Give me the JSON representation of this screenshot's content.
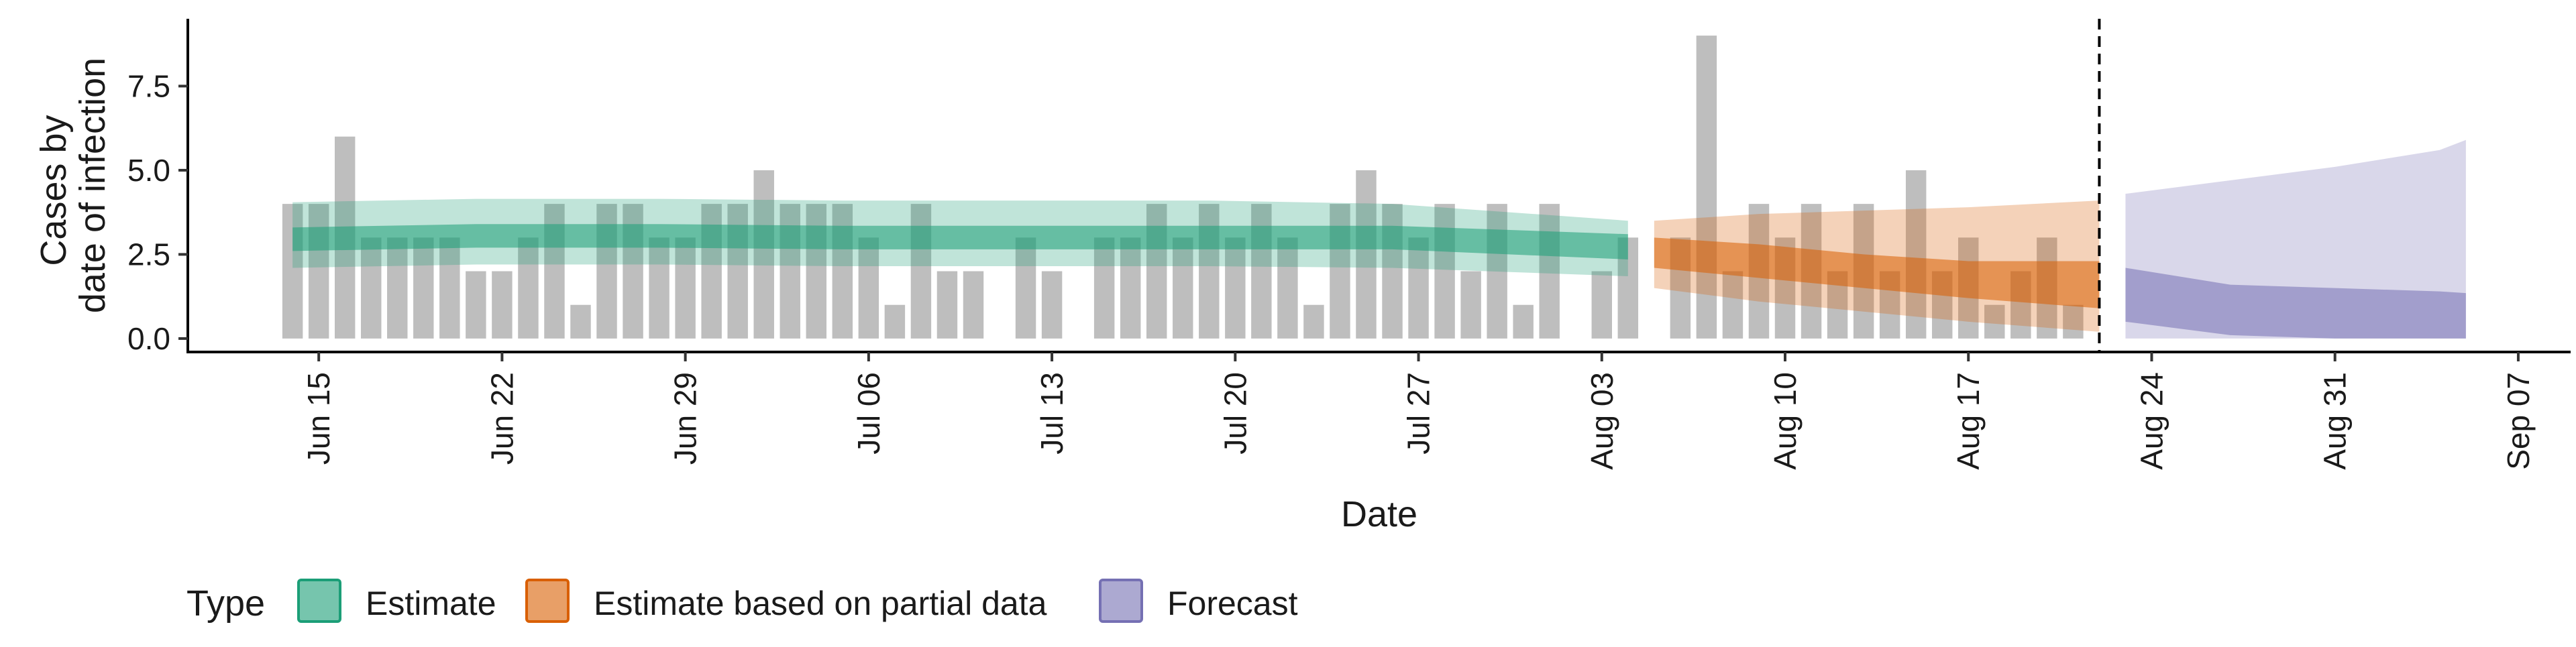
{
  "chart_data": {
    "type": "bar",
    "xlabel": "Date",
    "ylabel_lines": [
      "Cases by",
      "date of infection"
    ],
    "x_range": [
      "2020-06-10",
      "2020-09-09"
    ],
    "ylim": [
      -0.4,
      9.5
    ],
    "y_ticks": [
      0.0,
      2.5,
      5.0,
      7.5
    ],
    "y_tick_labels": [
      "0.0",
      "2.5",
      "5.0",
      "7.5"
    ],
    "x_ticks": [
      "2020-06-15",
      "2020-06-22",
      "2020-06-29",
      "2020-07-06",
      "2020-07-13",
      "2020-07-20",
      "2020-07-27",
      "2020-08-03",
      "2020-08-10",
      "2020-08-17",
      "2020-08-24",
      "2020-08-31",
      "2020-09-07"
    ],
    "x_tick_labels": [
      "Jun 15",
      "Jun 22",
      "Jun 29",
      "Jul 06",
      "Jul 13",
      "Jul 20",
      "Jul 27",
      "Aug 03",
      "Aug 10",
      "Aug 17",
      "Aug 24",
      "Aug 31",
      "Sep 07"
    ],
    "grid": false,
    "forecast_cutoff_date": "2020-08-22",
    "reported_cases": {
      "start_date": "2020-06-14",
      "values": [
        4,
        4,
        6,
        3,
        3,
        3,
        3,
        2,
        2,
        3,
        4,
        1,
        4,
        4,
        3,
        3,
        4,
        4,
        5,
        4,
        4,
        4,
        3,
        1,
        4,
        2,
        2,
        0,
        3,
        2,
        0,
        3,
        3,
        4,
        3,
        4,
        3,
        4,
        3,
        1,
        4,
        5,
        4,
        3,
        4,
        2,
        4,
        1,
        4,
        0,
        2,
        3,
        0,
        3,
        9,
        2,
        4,
        3,
        4,
        2,
        4,
        2,
        5,
        2,
        3,
        1,
        2,
        3,
        1
      ]
    },
    "series": [
      {
        "name": "Estimate",
        "color": "#1b9e77",
        "dates": [
          "2020-06-14",
          "2020-06-21",
          "2020-06-28",
          "2020-07-05",
          "2020-07-12",
          "2020-07-19",
          "2020-07-26",
          "2020-08-04"
        ],
        "median": [
          2.95,
          3.05,
          3.05,
          3.0,
          3.0,
          3.0,
          3.0,
          2.75
        ],
        "inner_low": [
          2.6,
          2.7,
          2.7,
          2.65,
          2.65,
          2.65,
          2.65,
          2.35
        ],
        "inner_high": [
          3.3,
          3.4,
          3.4,
          3.35,
          3.35,
          3.35,
          3.35,
          3.1
        ],
        "outer_low": [
          2.1,
          2.2,
          2.2,
          2.15,
          2.15,
          2.15,
          2.1,
          1.85
        ],
        "outer_high": [
          4.05,
          4.15,
          4.15,
          4.1,
          4.1,
          4.1,
          4.0,
          3.5
        ]
      },
      {
        "name": "Estimate based on partial data",
        "color": "#d95f02",
        "dates": [
          "2020-08-05",
          "2020-08-09",
          "2020-08-13",
          "2020-08-17",
          "2020-08-22"
        ],
        "median": [
          2.55,
          2.35,
          2.05,
          1.85,
          1.7
        ],
        "inner_low": [
          2.1,
          1.8,
          1.5,
          1.2,
          0.9
        ],
        "inner_high": [
          3.0,
          2.8,
          2.5,
          2.3,
          2.3
        ],
        "outer_low": [
          1.5,
          1.1,
          0.8,
          0.5,
          0.2
        ],
        "outer_high": [
          3.5,
          3.7,
          3.8,
          3.9,
          4.1
        ]
      },
      {
        "name": "Forecast",
        "color": "#7570b3",
        "dates": [
          "2020-08-23",
          "2020-08-27",
          "2020-08-31",
          "2020-09-04",
          "2020-09-05"
        ],
        "inner_low": [
          0.5,
          0.1,
          0.0,
          0.0,
          0.0
        ],
        "inner_high": [
          2.1,
          1.6,
          1.5,
          1.4,
          1.35
        ],
        "outer_low": [
          0.0,
          0.0,
          0.0,
          0.0,
          0.0
        ],
        "outer_high": [
          4.3,
          4.7,
          5.1,
          5.6,
          5.9
        ]
      }
    ],
    "legend": {
      "title": "Type",
      "position": "bottom",
      "items": [
        "Estimate",
        "Estimate based on partial data",
        "Forecast"
      ]
    }
  }
}
